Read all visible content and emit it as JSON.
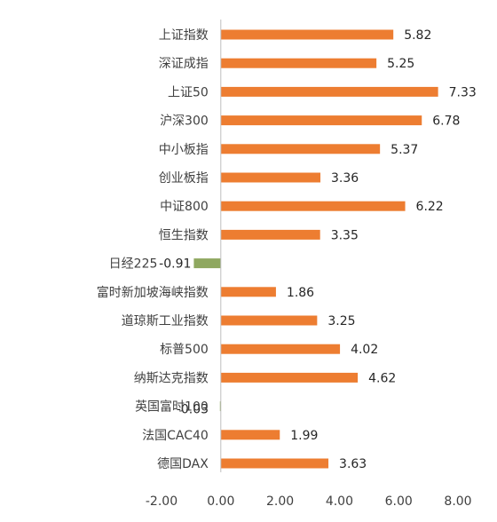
{
  "chart_data": {
    "type": "bar",
    "orientation": "horizontal",
    "categories": [
      "上证指数",
      "深证成指",
      "上证50",
      "沪深300",
      "中小板指",
      "创业板指",
      "中证800",
      "恒生指数",
      "日经225",
      "富时新加坡海峡指数",
      "道琼斯工业指数",
      "标普500",
      "纳斯达克指数",
      "英国富时100",
      "法国CAC40",
      "德国DAX"
    ],
    "values": [
      5.82,
      5.25,
      7.33,
      6.78,
      5.37,
      3.36,
      6.22,
      3.35,
      -0.91,
      1.86,
      3.25,
      4.02,
      4.62,
      -0.03,
      1.99,
      3.63
    ],
    "value_labels": [
      "5.82",
      "5.25",
      "7.33",
      "6.78",
      "5.37",
      "3.36",
      "6.22",
      "3.35",
      "-0.91",
      "1.86",
      "3.25",
      "4.02",
      "4.62",
      "-0.03",
      "1.99",
      "3.63"
    ],
    "xlim": [
      -2,
      8
    ],
    "xticks": [
      -2,
      0,
      2,
      4,
      6,
      8
    ],
    "xtick_labels": [
      "-2.00",
      "0.00",
      "2.00",
      "4.00",
      "6.00",
      "8.00"
    ],
    "title": "",
    "xlabel": "",
    "ylabel": "",
    "grid": false,
    "colors": {
      "positive": "#ED7D31",
      "negative": "#8FA860",
      "axis": "#BFBFBF"
    }
  }
}
